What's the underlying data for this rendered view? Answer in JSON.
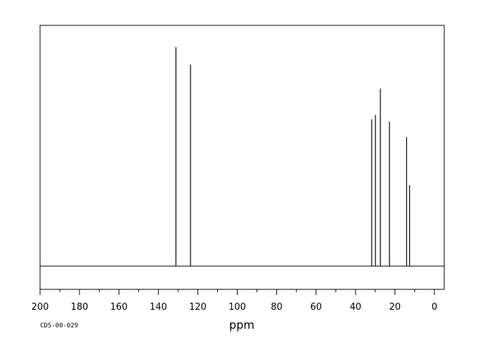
{
  "chart_data": {
    "type": "line",
    "title": "",
    "xlabel": "ppm",
    "ylabel": "",
    "xlim": [
      200,
      -5
    ],
    "x_reversed": true,
    "ylim": [
      -0.12,
      1.2
    ],
    "baseline": 0,
    "grid": false,
    "legend": "none",
    "xticks": [
      200,
      180,
      160,
      140,
      120,
      100,
      80,
      60,
      40,
      20,
      0
    ],
    "minor_tick_step": 10,
    "peaks": [
      {
        "ppm": 131.1,
        "intensity": 1.0
      },
      {
        "ppm": 123.7,
        "intensity": 0.92
      },
      {
        "ppm": 31.8,
        "intensity": 0.67
      },
      {
        "ppm": 29.9,
        "intensity": 0.69
      },
      {
        "ppm": 27.4,
        "intensity": 0.81
      },
      {
        "ppm": 22.8,
        "intensity": 0.66
      },
      {
        "ppm": 14.1,
        "intensity": 0.59
      },
      {
        "ppm": 12.6,
        "intensity": 0.37
      }
    ],
    "annotations": [
      {
        "text": "CDS-00-029"
      }
    ],
    "colors": {
      "line": "#000000",
      "frame": "#000000",
      "background": "#ffffff"
    }
  }
}
